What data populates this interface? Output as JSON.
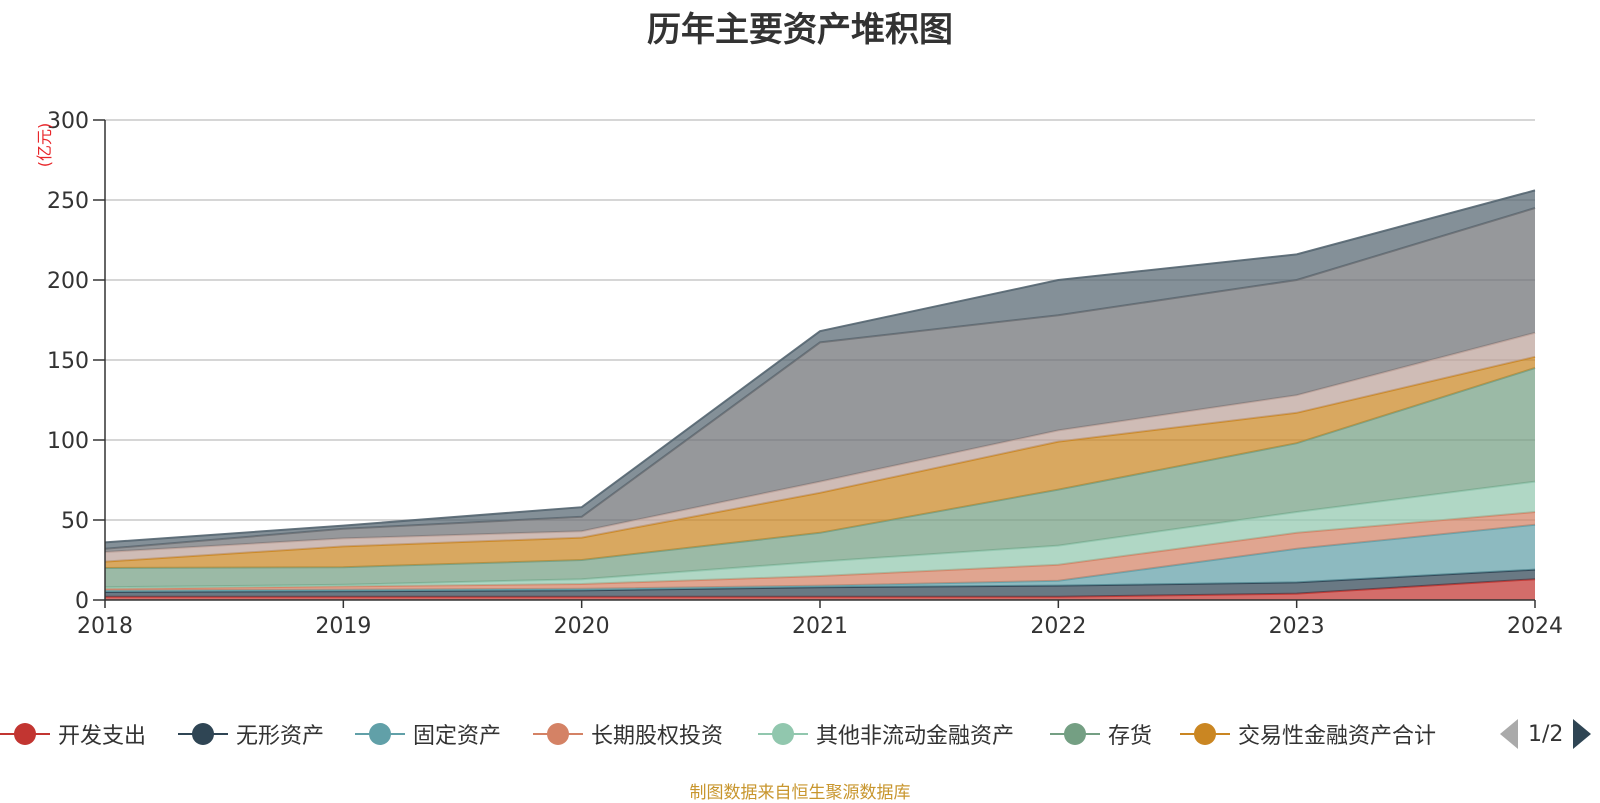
{
  "chart_data": {
    "type": "area",
    "stacked": true,
    "title": "历年主要资产堆积图",
    "unit_label": "(亿元)",
    "categories": [
      "2018",
      "2019",
      "2020",
      "2021",
      "2022",
      "2023",
      "2024"
    ],
    "ylim": [
      0,
      300
    ],
    "yticks": [
      0,
      50,
      100,
      150,
      200,
      250,
      300
    ],
    "grid": true,
    "legend_position": "bottom",
    "series": [
      {
        "name": "开发支出",
        "color": "#c23531",
        "values": [
          2,
          2,
          2,
          2,
          2,
          4,
          13
        ]
      },
      {
        "name": "无形资产",
        "color": "#2f4554",
        "values": [
          3,
          3.5,
          4,
          6,
          7,
          7,
          6
        ]
      },
      {
        "name": "固定资产",
        "color": "#61a0a8",
        "values": [
          1,
          1,
          1,
          1,
          3,
          21,
          28
        ]
      },
      {
        "name": "长期股权投资",
        "color": "#d48265",
        "values": [
          1,
          2,
          3,
          6,
          10,
          10,
          8
        ]
      },
      {
        "name": "其他非流动金融资产",
        "color": "#91c7ae",
        "values": [
          1,
          1,
          3,
          9,
          12,
          13,
          19
        ]
      },
      {
        "name": "存货",
        "color": "#749f83",
        "values": [
          12,
          11,
          12,
          18,
          35,
          43,
          71
        ]
      },
      {
        "name": "交易性金融资产合计",
        "color": "#ca8622",
        "values": [
          4,
          13,
          14,
          25,
          30,
          19,
          7
        ]
      },
      {
        "name": "",
        "color": "#bda29a",
        "values": [
          6,
          5,
          4,
          7,
          7,
          11,
          15
        ]
      },
      {
        "name": "",
        "color": "#6e7074",
        "values": [
          2,
          6,
          9,
          87,
          72,
          72,
          78
        ]
      },
      {
        "name": "",
        "color": "#546570",
        "values": [
          4,
          2,
          6,
          7,
          22,
          16,
          11
        ]
      }
    ]
  },
  "legend": {
    "page": "1/2"
  },
  "footer": {
    "note": "制图数据来自恒生聚源数据库"
  }
}
